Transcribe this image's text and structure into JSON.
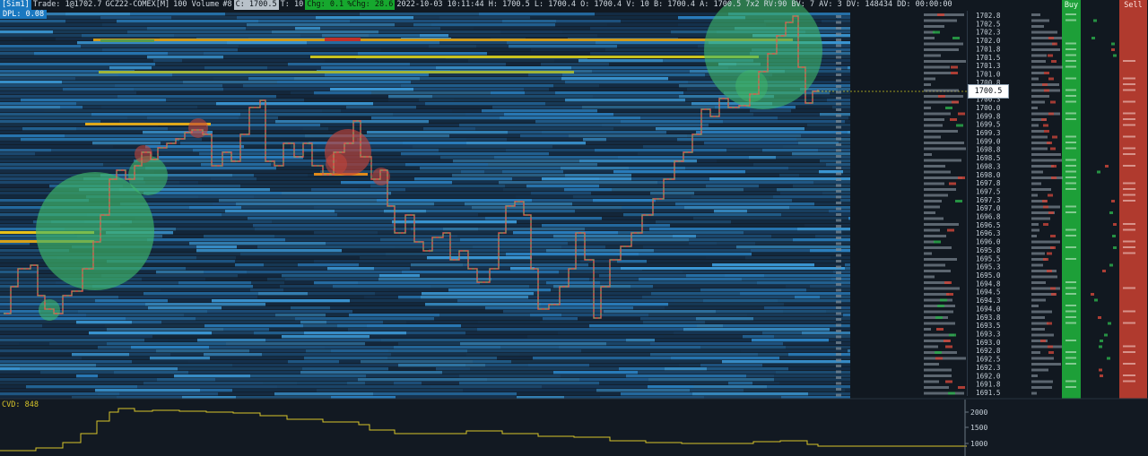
{
  "status": {
    "mode": "[Sim1]",
    "trade": "Trade: 1@1702.7",
    "symbol": "GCZ22-COMEX[M]",
    "volume_label": "100 Volume",
    "bars": "#8",
    "close": "C: 1700.5",
    "t": "T: 10",
    "chg": "Chg: 0.1",
    "pchg": "%Chg: 28.6",
    "info": "2022-10-03 10:11:44 H: 1700.5 L: 1700.4 O: 1700.4 V: 10 B: 1700.4 A: 1700.5 7x2 RV:90 BV: 7 AV: 3 DV: 148434 DD: 00:00:00",
    "dpl": "DPL: 0.08"
  },
  "cvd_label": "CVD: 848",
  "current_price": "1700.5",
  "columns": {
    "buy": "Buy",
    "sell": "Sell"
  },
  "price_ladder": [
    "1702.8",
    "1702.5",
    "1702.3",
    "1702.0",
    "1701.8",
    "1701.5",
    "1701.3",
    "1701.0",
    "1700.8",
    "1700.5",
    "1700.3",
    "1700.0",
    "1699.8",
    "1699.5",
    "1699.3",
    "1699.0",
    "1698.8",
    "1698.5",
    "1698.3",
    "1698.0",
    "1697.8",
    "1697.5",
    "1697.3",
    "1697.0",
    "1696.8",
    "1696.5",
    "1696.3",
    "1696.0",
    "1695.8",
    "1695.5",
    "1695.3",
    "1695.0",
    "1694.8",
    "1694.5",
    "1694.3",
    "1694.0",
    "1693.8",
    "1693.5",
    "1693.3",
    "1693.0",
    "1692.8",
    "1692.5",
    "1692.3",
    "1692.0",
    "1691.8",
    "1691.5"
  ],
  "cvd_axis": [
    "2000",
    "1500",
    "1000"
  ],
  "colors": {
    "bg": "#111820",
    "heat_low": "#1c3a58",
    "heat_mid": "#2a88c8",
    "heat_high": "#ffd41a",
    "line_up": "#4fc46a",
    "line_down": "#e05a4e",
    "cvd": "#d8c52a",
    "buy": "#1d9f38",
    "sell": "#b03a2e"
  }
}
